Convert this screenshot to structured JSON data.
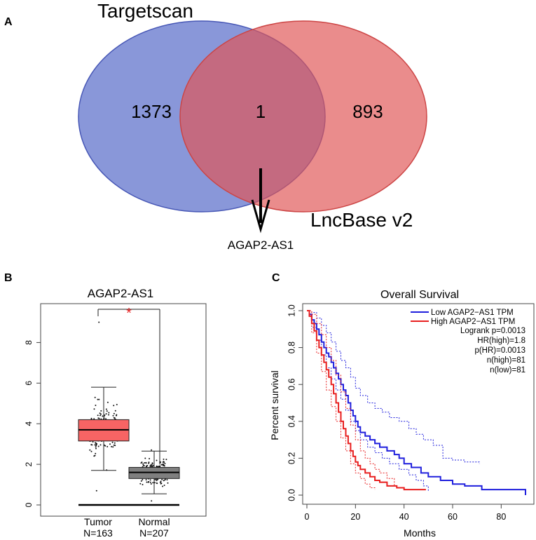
{
  "panel_labels": {
    "a": "A",
    "b": "B",
    "c": "C"
  },
  "colors": {
    "venn_left": "#5b6fcb",
    "venn_right": "#e06060",
    "tumor_box": "#f76464",
    "normal_box": "#7f7f7f",
    "low": "#1f1fdd",
    "high": "#e81f1f",
    "star": "#e81f1f"
  },
  "chart_data": [
    {
      "type": "venn",
      "sets": [
        {
          "name": "Targetscan",
          "only": "1373"
        },
        {
          "name": "LncBase v2",
          "only": "893"
        }
      ],
      "intersection": "1",
      "arrow_label": "AGAP2-AS1"
    },
    {
      "type": "box",
      "title": "AGAP2-AS1",
      "significance": "*",
      "ylim": [
        0,
        9.5
      ],
      "yticks": [
        "0",
        "2",
        "4",
        "6",
        "8"
      ],
      "groups": [
        {
          "name": "Tumor",
          "n_label": "N=163",
          "q1": 3.15,
          "median": 3.7,
          "q3": 4.2,
          "whisker_low": 1.7,
          "whisker_high": 5.8,
          "min": 0.7,
          "max": 9.0,
          "n": 163
        },
        {
          "name": "Normal",
          "n_label": "N=207",
          "q1": 1.3,
          "median": 1.6,
          "q3": 1.85,
          "whisker_low": 0.55,
          "whisker_high": 2.65,
          "min": 0.2,
          "max": 2.7,
          "n": 207
        }
      ]
    },
    {
      "type": "line",
      "title": "Overall Survival",
      "xlabel": "Months",
      "ylabel": "Percent survival",
      "xlim": [
        0,
        92
      ],
      "ylim": [
        0,
        1.02
      ],
      "xticks": [
        "0",
        "20",
        "40",
        "60",
        "80"
      ],
      "yticks": [
        "0.0",
        "0.2",
        "0.4",
        "0.6",
        "0.8",
        "1.0"
      ],
      "legend": [
        "Low AGAP2−AS1 TPM",
        "High AGAP2−AS1 TPM"
      ],
      "stats": [
        "Logrank p=0.0013",
        "HR(high)=1.8",
        "p(HR)=0.0013",
        "n(high)=81",
        "n(low)=81"
      ],
      "series": [
        {
          "name": "Low AGAP2−AS1 TPM",
          "points": [
            [
              0,
              1.0
            ],
            [
              1,
              0.98
            ],
            [
              2,
              0.95
            ],
            [
              3,
              0.93
            ],
            [
              4,
              0.9
            ],
            [
              5,
              0.87
            ],
            [
              6,
              0.83
            ],
            [
              7,
              0.8
            ],
            [
              8,
              0.77
            ],
            [
              9,
              0.75
            ],
            [
              10,
              0.72
            ],
            [
              11,
              0.69
            ],
            [
              12,
              0.66
            ],
            [
              13,
              0.63
            ],
            [
              14,
              0.6
            ],
            [
              15,
              0.57
            ],
            [
              16,
              0.54
            ],
            [
              17,
              0.5
            ],
            [
              18,
              0.46
            ],
            [
              19,
              0.43
            ],
            [
              20,
              0.4
            ],
            [
              21,
              0.37
            ],
            [
              22,
              0.34
            ],
            [
              24,
              0.32
            ],
            [
              26,
              0.3
            ],
            [
              28,
              0.28
            ],
            [
              30,
              0.26
            ],
            [
              33,
              0.24
            ],
            [
              36,
              0.22
            ],
            [
              38,
              0.2
            ],
            [
              40,
              0.17
            ],
            [
              43,
              0.15
            ],
            [
              47,
              0.12
            ],
            [
              50,
              0.1
            ],
            [
              55,
              0.08
            ],
            [
              60,
              0.06
            ],
            [
              65,
              0.05
            ],
            [
              72,
              0.03
            ],
            [
              80,
              0.03
            ],
            [
              90,
              0.03
            ],
            [
              90,
              0.0
            ]
          ],
          "upper": [
            [
              0,
              1.0
            ],
            [
              2,
              0.99
            ],
            [
              4,
              0.96
            ],
            [
              6,
              0.92
            ],
            [
              8,
              0.88
            ],
            [
              10,
              0.83
            ],
            [
              12,
              0.78
            ],
            [
              14,
              0.73
            ],
            [
              16,
              0.69
            ],
            [
              18,
              0.64
            ],
            [
              20,
              0.58
            ],
            [
              22,
              0.54
            ],
            [
              25,
              0.5
            ],
            [
              28,
              0.47
            ],
            [
              31,
              0.45
            ],
            [
              34,
              0.42
            ],
            [
              38,
              0.4
            ],
            [
              42,
              0.36
            ],
            [
              45,
              0.33
            ],
            [
              48,
              0.3
            ],
            [
              52,
              0.27
            ],
            [
              56,
              0.2
            ],
            [
              60,
              0.19
            ],
            [
              65,
              0.18
            ],
            [
              71,
              0.17
            ]
          ],
          "lower": [
            [
              0,
              1.0
            ],
            [
              2,
              0.91
            ],
            [
              4,
              0.84
            ],
            [
              6,
              0.76
            ],
            [
              8,
              0.69
            ],
            [
              10,
              0.63
            ],
            [
              12,
              0.57
            ],
            [
              14,
              0.52
            ],
            [
              16,
              0.46
            ],
            [
              18,
              0.4
            ],
            [
              20,
              0.35
            ],
            [
              22,
              0.3
            ],
            [
              25,
              0.26
            ],
            [
              28,
              0.23
            ],
            [
              31,
              0.2
            ],
            [
              34,
              0.17
            ],
            [
              38,
              0.14
            ],
            [
              42,
              0.11
            ],
            [
              45,
              0.08
            ],
            [
              48,
              0.05
            ],
            [
              50,
              0.02
            ]
          ]
        },
        {
          "name": "High AGAP2−AS1 TPM",
          "points": [
            [
              0,
              1.0
            ],
            [
              1,
              0.97
            ],
            [
              2,
              0.93
            ],
            [
              3,
              0.89
            ],
            [
              4,
              0.84
            ],
            [
              5,
              0.8
            ],
            [
              6,
              0.76
            ],
            [
              7,
              0.72
            ],
            [
              8,
              0.68
            ],
            [
              9,
              0.64
            ],
            [
              10,
              0.6
            ],
            [
              11,
              0.55
            ],
            [
              12,
              0.5
            ],
            [
              13,
              0.45
            ],
            [
              14,
              0.4
            ],
            [
              15,
              0.36
            ],
            [
              16,
              0.32
            ],
            [
              17,
              0.28
            ],
            [
              18,
              0.24
            ],
            [
              19,
              0.21
            ],
            [
              20,
              0.18
            ],
            [
              21,
              0.16
            ],
            [
              22,
              0.14
            ],
            [
              24,
              0.12
            ],
            [
              26,
              0.1
            ],
            [
              28,
              0.08
            ],
            [
              30,
              0.07
            ],
            [
              33,
              0.05
            ],
            [
              37,
              0.04
            ],
            [
              40,
              0.03
            ],
            [
              45,
              0.03
            ],
            [
              49,
              0.03
            ]
          ],
          "upper": [
            [
              0,
              1.0
            ],
            [
              2,
              0.98
            ],
            [
              4,
              0.93
            ],
            [
              6,
              0.87
            ],
            [
              8,
              0.8
            ],
            [
              10,
              0.73
            ],
            [
              12,
              0.65
            ],
            [
              14,
              0.56
            ],
            [
              16,
              0.47
            ],
            [
              18,
              0.38
            ],
            [
              20,
              0.3
            ],
            [
              22,
              0.24
            ],
            [
              24,
              0.2
            ],
            [
              26,
              0.17
            ],
            [
              28,
              0.14
            ],
            [
              30,
              0.12
            ],
            [
              33,
              0.09
            ],
            [
              36,
              0.05
            ]
          ],
          "lower": [
            [
              0,
              1.0
            ],
            [
              2,
              0.88
            ],
            [
              4,
              0.77
            ],
            [
              6,
              0.67
            ],
            [
              8,
              0.57
            ],
            [
              10,
              0.48
            ],
            [
              12,
              0.4
            ],
            [
              14,
              0.31
            ],
            [
              16,
              0.24
            ],
            [
              18,
              0.17
            ],
            [
              20,
              0.12
            ],
            [
              22,
              0.09
            ],
            [
              24,
              0.06
            ],
            [
              26,
              0.04
            ],
            [
              28,
              0.03
            ]
          ]
        }
      ]
    }
  ]
}
